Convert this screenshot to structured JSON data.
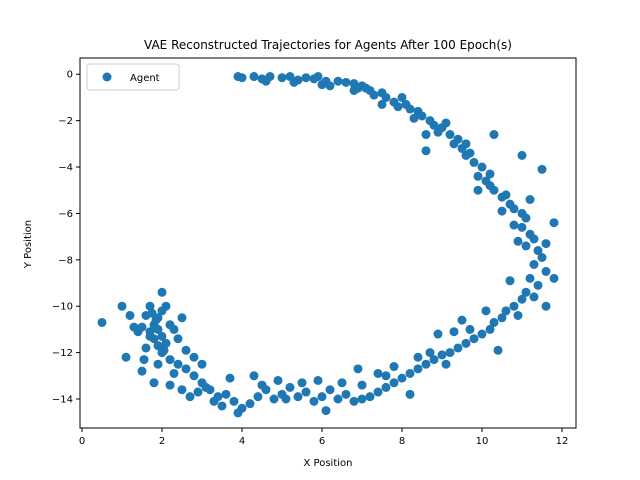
{
  "chart_data": {
    "type": "scatter",
    "title": "VAE Reconstructed Trajectories for Agents After 100 Epoch(s)",
    "xlabel": "X Position",
    "ylabel": "Y Position",
    "xlim": [
      -0.05,
      12.35
    ],
    "ylim": [
      -15.25,
      0.7
    ],
    "xticks": [
      0,
      2,
      4,
      6,
      8,
      10,
      12
    ],
    "yticks": [
      0,
      -2,
      -4,
      -6,
      -8,
      -10,
      -12,
      -14
    ],
    "xtick_labels": [
      "0",
      "2",
      "4",
      "6",
      "8",
      "10",
      "12"
    ],
    "ytick_labels": [
      "0",
      "−2",
      "−4",
      "−6",
      "−8",
      "−10",
      "−12",
      "−14"
    ],
    "grid": false,
    "legend": {
      "position": "top-left",
      "entries": [
        "Agent"
      ]
    },
    "series": [
      {
        "name": "Agent",
        "color": "#1f77b4",
        "points": [
          [
            3.9,
            -0.1
          ],
          [
            4.0,
            -0.15
          ],
          [
            4.3,
            -0.1
          ],
          [
            4.5,
            -0.2
          ],
          [
            4.7,
            -0.1
          ],
          [
            5.0,
            -0.15
          ],
          [
            5.2,
            -0.1
          ],
          [
            5.4,
            -0.25
          ],
          [
            5.6,
            -0.15
          ],
          [
            5.8,
            -0.2
          ],
          [
            5.9,
            -0.1
          ],
          [
            6.1,
            -0.3
          ],
          [
            6.2,
            -0.5
          ],
          [
            6.4,
            -0.3
          ],
          [
            6.6,
            -0.35
          ],
          [
            6.8,
            -0.4
          ],
          [
            6.9,
            -0.6
          ],
          [
            7.0,
            -0.5
          ],
          [
            7.2,
            -0.7
          ],
          [
            7.3,
            -0.9
          ],
          [
            7.5,
            -0.8
          ],
          [
            7.6,
            -1.0
          ],
          [
            7.8,
            -1.2
          ],
          [
            7.9,
            -1.4
          ],
          [
            8.1,
            -1.3
          ],
          [
            8.2,
            -1.5
          ],
          [
            8.4,
            -1.6
          ],
          [
            8.5,
            -1.8
          ],
          [
            8.7,
            -2.0
          ],
          [
            8.8,
            -2.2
          ],
          [
            8.9,
            -2.5
          ],
          [
            9.0,
            -2.3
          ],
          [
            9.2,
            -2.6
          ],
          [
            9.3,
            -3.0
          ],
          [
            9.4,
            -2.8
          ],
          [
            9.5,
            -3.2
          ],
          [
            9.6,
            -3.5
          ],
          [
            9.7,
            -3.4
          ],
          [
            9.8,
            -3.8
          ],
          [
            10.0,
            -4.0
          ],
          [
            9.9,
            -4.4
          ],
          [
            10.1,
            -4.6
          ],
          [
            10.2,
            -4.8
          ],
          [
            10.3,
            -5.0
          ],
          [
            10.5,
            -5.3
          ],
          [
            10.6,
            -5.2
          ],
          [
            10.7,
            -5.6
          ],
          [
            10.8,
            -5.8
          ],
          [
            11.0,
            -6.0
          ],
          [
            11.1,
            -6.2
          ],
          [
            11.0,
            -6.6
          ],
          [
            11.2,
            -6.9
          ],
          [
            11.3,
            -7.1
          ],
          [
            11.1,
            -7.4
          ],
          [
            11.4,
            -7.6
          ],
          [
            11.5,
            -7.9
          ],
          [
            11.3,
            -8.2
          ],
          [
            11.6,
            -8.5
          ],
          [
            11.2,
            -8.8
          ],
          [
            11.4,
            -9.1
          ],
          [
            11.1,
            -9.4
          ],
          [
            11.0,
            -9.7
          ],
          [
            10.8,
            -10.0
          ],
          [
            10.6,
            -10.2
          ],
          [
            10.5,
            -10.5
          ],
          [
            10.3,
            -10.7
          ],
          [
            10.2,
            -11.0
          ],
          [
            10.0,
            -11.2
          ],
          [
            9.8,
            -11.4
          ],
          [
            9.6,
            -11.6
          ],
          [
            9.4,
            -11.8
          ],
          [
            9.2,
            -12.0
          ],
          [
            9.0,
            -12.1
          ],
          [
            8.8,
            -12.3
          ],
          [
            8.6,
            -12.5
          ],
          [
            8.4,
            -12.7
          ],
          [
            8.2,
            -12.9
          ],
          [
            8.0,
            -13.1
          ],
          [
            7.8,
            -13.3
          ],
          [
            7.6,
            -13.5
          ],
          [
            7.4,
            -13.7
          ],
          [
            7.2,
            -13.9
          ],
          [
            7.0,
            -14.0
          ],
          [
            6.8,
            -14.1
          ],
          [
            6.6,
            -13.8
          ],
          [
            6.4,
            -14.0
          ],
          [
            6.2,
            -13.6
          ],
          [
            6.0,
            -13.9
          ],
          [
            5.8,
            -14.1
          ],
          [
            5.6,
            -13.7
          ],
          [
            5.4,
            -13.9
          ],
          [
            5.2,
            -13.5
          ],
          [
            5.0,
            -13.8
          ],
          [
            4.8,
            -14.0
          ],
          [
            4.6,
            -13.6
          ],
          [
            4.4,
            -13.9
          ],
          [
            4.2,
            -14.2
          ],
          [
            4.0,
            -14.4
          ],
          [
            3.8,
            -14.1
          ],
          [
            3.6,
            -13.8
          ],
          [
            3.4,
            -13.9
          ],
          [
            3.2,
            -13.6
          ],
          [
            3.0,
            -13.3
          ],
          [
            2.8,
            -13.0
          ],
          [
            2.6,
            -12.7
          ],
          [
            2.4,
            -12.5
          ],
          [
            2.2,
            -12.3
          ],
          [
            2.0,
            -12.0
          ],
          [
            1.9,
            -11.7
          ],
          [
            1.8,
            -11.4
          ],
          [
            1.7,
            -11.1
          ],
          [
            1.8,
            -10.8
          ],
          [
            1.9,
            -10.5
          ],
          [
            2.0,
            -10.2
          ],
          [
            1.6,
            -10.4
          ],
          [
            1.5,
            -10.9
          ],
          [
            1.7,
            -11.3
          ],
          [
            2.1,
            -11.6
          ],
          [
            2.3,
            -11.0
          ],
          [
            2.5,
            -10.5
          ],
          [
            1.2,
            -10.4
          ],
          [
            1.0,
            -10.0
          ],
          [
            1.3,
            -10.9
          ],
          [
            0.5,
            -10.7
          ],
          [
            1.1,
            -12.2
          ],
          [
            1.5,
            -12.8
          ],
          [
            1.8,
            -13.3
          ],
          [
            2.0,
            -9.4
          ],
          [
            2.8,
            -12.2
          ],
          [
            3.0,
            -12.5
          ],
          [
            2.2,
            -13.4
          ],
          [
            2.5,
            -13.6
          ],
          [
            2.7,
            -13.9
          ],
          [
            6.8,
            -0.7
          ],
          [
            7.5,
            -1.3
          ],
          [
            8.3,
            -1.9
          ],
          [
            9.1,
            -2.1
          ],
          [
            10.3,
            -2.6
          ],
          [
            11.0,
            -3.5
          ],
          [
            11.5,
            -4.1
          ],
          [
            9.9,
            -5.0
          ],
          [
            10.8,
            -6.5
          ],
          [
            11.8,
            -6.4
          ],
          [
            11.6,
            -7.3
          ],
          [
            11.8,
            -8.8
          ],
          [
            10.7,
            -8.9
          ],
          [
            11.3,
            -9.6
          ],
          [
            9.5,
            -10.6
          ],
          [
            8.9,
            -11.2
          ],
          [
            10.4,
            -11.9
          ],
          [
            8.7,
            -12.0
          ],
          [
            9.1,
            -12.5
          ],
          [
            8.2,
            -13.8
          ],
          [
            7.8,
            -12.6
          ],
          [
            7.4,
            -12.9
          ],
          [
            7.0,
            -13.4
          ],
          [
            6.5,
            -13.3
          ],
          [
            6.1,
            -14.5
          ],
          [
            5.5,
            -13.3
          ],
          [
            4.9,
            -13.2
          ],
          [
            4.5,
            -13.4
          ],
          [
            3.9,
            -14.6
          ],
          [
            3.5,
            -14.3
          ],
          [
            3.1,
            -13.5
          ],
          [
            1.9,
            -11.0
          ],
          [
            1.85,
            -10.6
          ],
          [
            2.0,
            -11.3
          ],
          [
            1.7,
            -10.0
          ],
          [
            2.2,
            -10.8
          ],
          [
            1.6,
            -11.8
          ],
          [
            1.9,
            -12.5
          ],
          [
            2.4,
            -11.4
          ],
          [
            1.4,
            -11.1
          ],
          [
            2.1,
            -10.0
          ],
          [
            1.75,
            -10.3
          ],
          [
            2.05,
            -11.9
          ],
          [
            1.55,
            -12.3
          ],
          [
            2.3,
            -12.9
          ],
          [
            2.6,
            -11.9
          ],
          [
            4.6,
            -0.3
          ],
          [
            5.3,
            -0.35
          ],
          [
            6.0,
            -0.45
          ],
          [
            7.1,
            -0.6
          ],
          [
            8.0,
            -1.0
          ],
          [
            8.6,
            -2.6
          ],
          [
            8.6,
            -3.3
          ],
          [
            9.6,
            -3.0
          ],
          [
            10.2,
            -4.3
          ],
          [
            10.5,
            -5.9
          ],
          [
            11.2,
            -5.4
          ],
          [
            10.9,
            -7.2
          ],
          [
            11.6,
            -10.0
          ],
          [
            10.9,
            -10.4
          ],
          [
            10.1,
            -10.2
          ],
          [
            9.7,
            -11.0
          ],
          [
            9.3,
            -11.1
          ],
          [
            8.4,
            -12.2
          ],
          [
            7.6,
            -13.0
          ],
          [
            6.9,
            -12.7
          ],
          [
            5.9,
            -13.2
          ],
          [
            5.1,
            -14.0
          ],
          [
            4.3,
            -13.0
          ],
          [
            3.7,
            -13.1
          ],
          [
            3.3,
            -14.1
          ],
          [
            2.9,
            -13.7
          ]
        ]
      }
    ]
  }
}
